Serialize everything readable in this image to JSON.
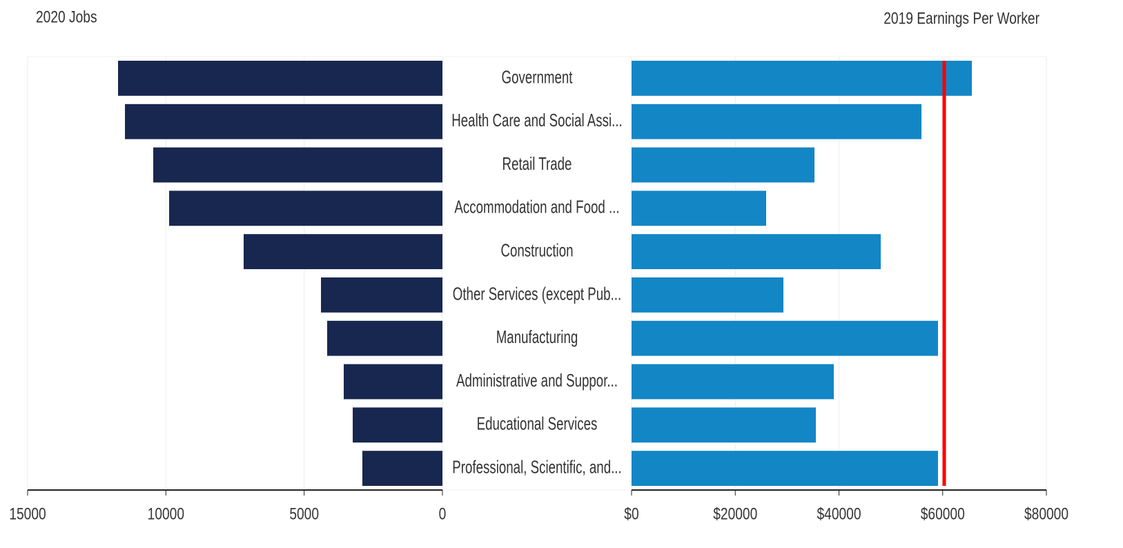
{
  "chart_data": [
    {
      "type": "bar",
      "orientation": "horizontal",
      "title": "2020 Jobs",
      "color": "#17274f",
      "categories": [
        "Government",
        "Health Care and Social Assi...",
        "Retail Trade",
        "Accommodation and Food ...",
        "Construction",
        "Other Services (except Pub...",
        "Manufacturing",
        "Administrative and Suppor...",
        "Educational Services",
        "Professional, Scientific, and..."
      ],
      "values": [
        11730,
        11480,
        10457,
        9883,
        7188,
        4392,
        4168,
        3569,
        3244,
        2895
      ],
      "xlim": [
        15000,
        0
      ],
      "xticks": [
        15000,
        10000,
        5000,
        0
      ],
      "grid": true
    },
    {
      "type": "bar",
      "orientation": "horizontal",
      "title": "2019 Earnings Per Worker",
      "color": "#1386c6",
      "values": [
        65624,
        55907,
        35275,
        25957,
        48053,
        29285,
        59101,
        39002,
        35541,
        59101
      ],
      "xlim": [
        0,
        80000
      ],
      "xticks": [
        {
          "value": 0,
          "label": "$0"
        },
        {
          "value": 20000,
          "label": "$20000"
        },
        {
          "value": 40000,
          "label": "$40000"
        },
        {
          "value": 60000,
          "label": "$60000"
        },
        {
          "value": 80000,
          "label": "$80000"
        }
      ],
      "reference_line": {
        "value": 60300,
        "color": "#ff0000"
      },
      "grid": true
    }
  ]
}
